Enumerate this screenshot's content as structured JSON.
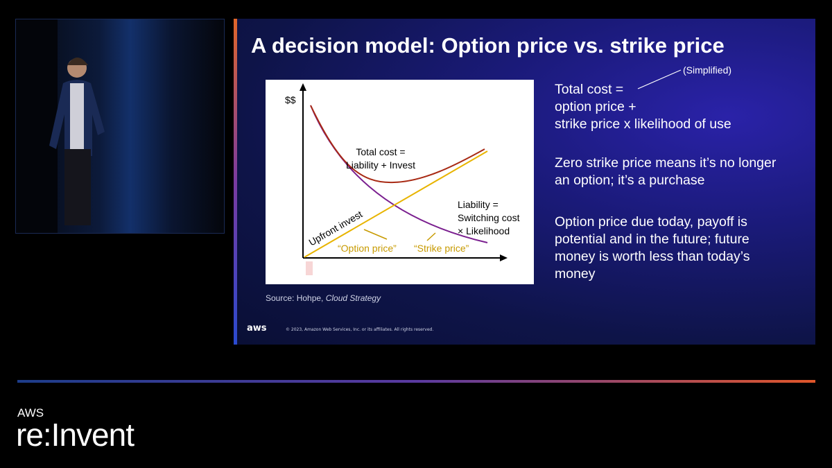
{
  "slide": {
    "title": "A decision model: Option price vs. strike price",
    "note": "(Simplified)",
    "bullets": [
      [
        "Total cost =",
        "option price +",
        "strike price x likelihood of use"
      ],
      [
        "Zero strike price means it’s no longer",
        "an option; it’s a purchase"
      ],
      [
        "Option price due today, payoff is",
        "potential and in the future; future",
        "money is worth less than today’s",
        "money"
      ]
    ],
    "diagram": {
      "y_axis": "$$",
      "total_cost": [
        "Total cost =",
        "Liability + Invest"
      ],
      "upfront": "Upfront invest",
      "liability": [
        "Liability =",
        "Switching cost",
        "× Likelihood"
      ],
      "option_price": "“Option price”",
      "strike_price": "“Strike price”"
    },
    "source": {
      "prefix": "Source: Hohpe, ",
      "book": "Cloud Strategy"
    },
    "logo": "aws",
    "copyright": "© 2023, Amazon Web Services, Inc. or its affiliates. All rights reserved."
  },
  "event": {
    "brand": "AWS",
    "name": "re:Invent"
  }
}
